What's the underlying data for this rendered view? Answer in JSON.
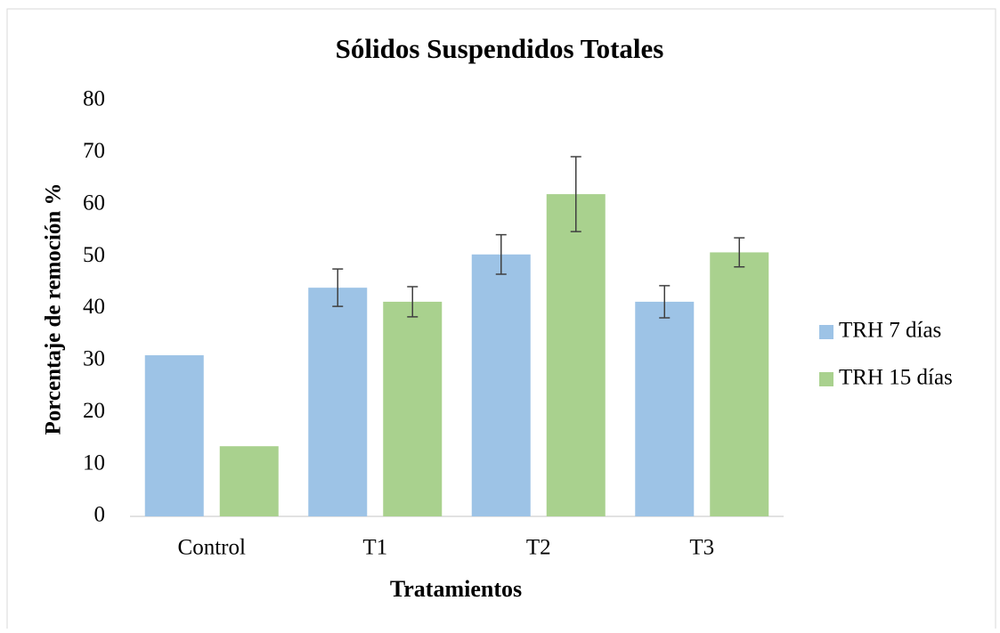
{
  "chart_data": {
    "type": "bar",
    "title": "Sólidos Suspendidos Totales",
    "x_label": "Tratamientos",
    "y_label": "Porcentaje de remoción %",
    "categories": [
      "Control",
      "T1",
      "T2",
      "T3"
    ],
    "series": [
      {
        "name": "TRH 7 días",
        "color": "#9dc3e6",
        "values": [
          31,
          44,
          50.4,
          41.3
        ],
        "errors": [
          null,
          3.6,
          3.8,
          3.1
        ]
      },
      {
        "name": "TRH 15 días",
        "color": "#a9d18e",
        "values": [
          13.5,
          41.3,
          62,
          50.8
        ],
        "errors": [
          null,
          2.9,
          7.2,
          2.8
        ]
      }
    ],
    "ylim": [
      0,
      80
    ],
    "yticks": [
      0,
      10,
      20,
      30,
      40,
      50,
      60,
      70,
      80
    ],
    "grid": false,
    "legend": "right"
  }
}
